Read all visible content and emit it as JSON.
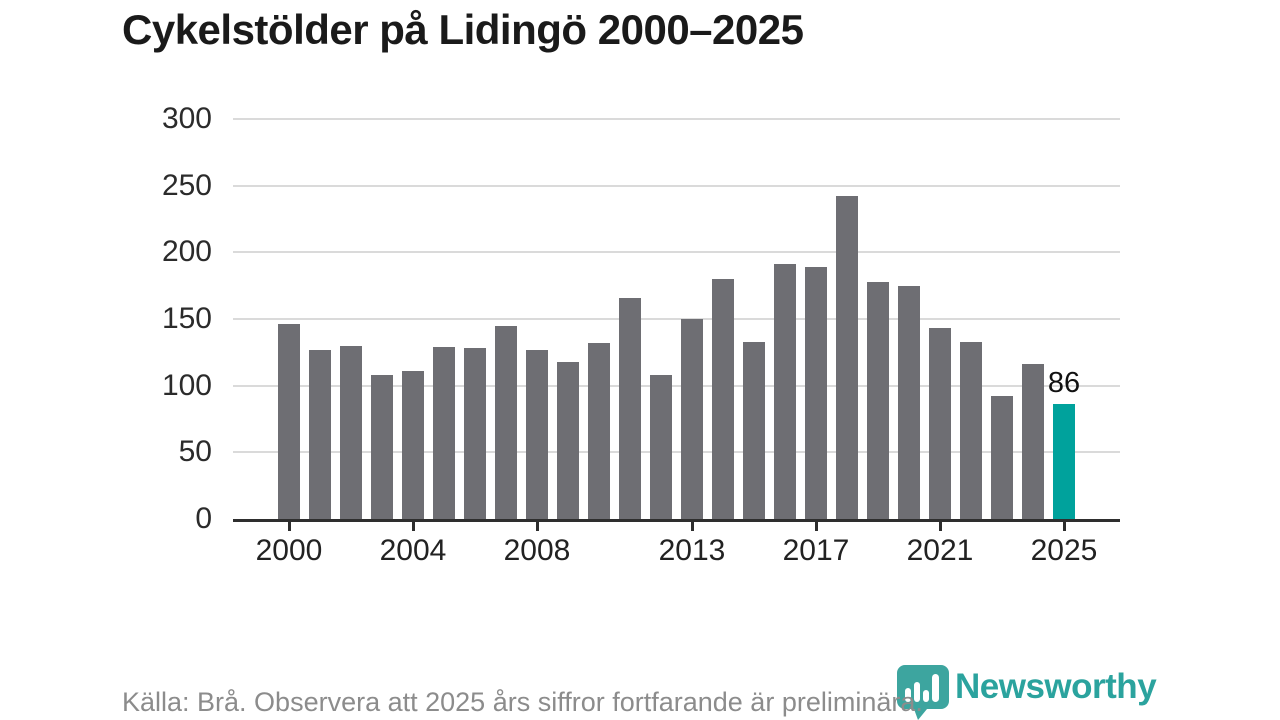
{
  "title": "Cykelstölder på Lidingö 2000–2025",
  "footer": {
    "source_note": "Källa: Brå. Observera att 2025 års siffror fortfarande är preliminära."
  },
  "branding": {
    "logo_text": "Newsworthy",
    "logo_icon": "newsworthy-pin-barchart-icon",
    "logo_color": "#2ba39e"
  },
  "colors": {
    "bar": "#6e6e73",
    "highlight_bar": "#00a29c",
    "gridline": "#dadada",
    "axis": "#2e2e2e",
    "tick_text": "#2b2b2b",
    "muted_text": "#8c8c8c"
  },
  "chart_data": {
    "type": "bar",
    "title": "Cykelstölder på Lidingö 2000–2025",
    "x": [
      2000,
      2001,
      2002,
      2003,
      2004,
      2005,
      2006,
      2007,
      2008,
      2009,
      2010,
      2011,
      2012,
      2013,
      2014,
      2015,
      2016,
      2017,
      2018,
      2019,
      2020,
      2021,
      2022,
      2023,
      2024,
      2025
    ],
    "values": [
      146,
      127,
      130,
      108,
      111,
      129,
      128,
      145,
      127,
      118,
      132,
      166,
      108,
      150,
      180,
      133,
      191,
      189,
      242,
      178,
      175,
      143,
      133,
      92,
      116,
      86
    ],
    "highlight_index": 25,
    "value_labels": [
      {
        "index": 25,
        "text": "86"
      }
    ],
    "y_ticks": [
      0,
      50,
      100,
      150,
      200,
      250,
      300
    ],
    "x_tick_years": [
      2000,
      2004,
      2008,
      2013,
      2017,
      2021,
      2025
    ],
    "ylim": [
      0,
      300
    ],
    "xlabel": "",
    "ylabel": "",
    "grid": "horizontal",
    "legend": "none"
  }
}
